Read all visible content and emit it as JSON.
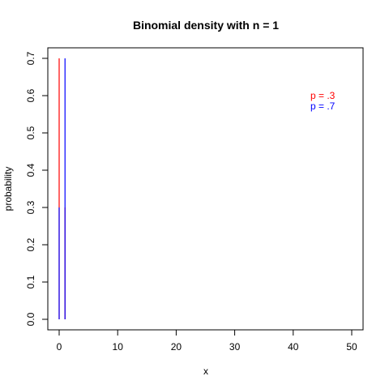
{
  "chart_data": {
    "type": "bar",
    "title": "Binomial density with n =  1",
    "xlabel": "x",
    "ylabel": "probability",
    "xlim": [
      0,
      50
    ],
    "ylim": [
      0,
      0.7
    ],
    "x_ticks": [
      0,
      10,
      20,
      30,
      40,
      50
    ],
    "y_ticks": [
      0.0,
      0.1,
      0.2,
      0.3,
      0.4,
      0.5,
      0.6,
      0.7
    ],
    "x_tick_labels": [
      "0",
      "10",
      "20",
      "30",
      "40",
      "50"
    ],
    "y_tick_labels": [
      "0.0",
      "0.1",
      "0.2",
      "0.3",
      "0.4",
      "0.5",
      "0.6",
      "0.7"
    ],
    "series": [
      {
        "name": "p = .3",
        "color": "#ff0000",
        "x": [
          0,
          1
        ],
        "values": [
          0.7,
          0.3
        ]
      },
      {
        "name": "p = .7",
        "color": "#0000ff",
        "x": [
          0,
          1
        ],
        "values": [
          0.3,
          0.7
        ]
      }
    ],
    "legend": {
      "placement": "top-right",
      "entries": [
        "p = .3",
        "p = .7"
      ]
    },
    "grid": false
  }
}
